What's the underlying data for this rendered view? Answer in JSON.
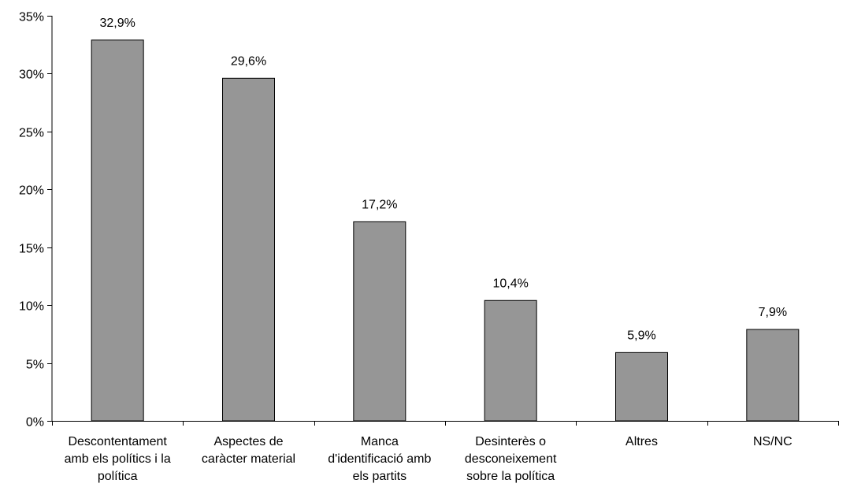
{
  "chart_data": {
    "type": "bar",
    "title": "",
    "xlabel": "",
    "ylabel": "",
    "categories": [
      "Descontentament amb els polítics i la política",
      "Aspectes de caràcter material",
      "Manca d'identificació amb els partits",
      "Desinterès o desconeixement sobre la política",
      "Altres",
      "NS/NC"
    ],
    "category_lines": [
      [
        "Descontentament",
        "amb els polítics i la",
        "política"
      ],
      [
        "Aspectes de",
        "caràcter material"
      ],
      [
        "Manca",
        "d'identificació amb",
        "els partits"
      ],
      [
        "Desinterès o",
        "desconeixement",
        "sobre la política"
      ],
      [
        "Altres"
      ],
      [
        "NS/NC"
      ]
    ],
    "values": [
      32.9,
      29.6,
      17.2,
      10.4,
      5.9,
      7.9
    ],
    "value_labels": [
      "32,9%",
      "29,6%",
      "17,2%",
      "10,4%",
      "5,9%",
      "7,9%"
    ],
    "ylim": [
      0,
      35
    ],
    "yticks": [
      0,
      5,
      10,
      15,
      20,
      25,
      30,
      35
    ],
    "ytick_labels": [
      "0%",
      "5%",
      "10%",
      "15%",
      "20%",
      "25%",
      "30%",
      "35%"
    ],
    "grid": false,
    "legend": "none",
    "colors": {
      "bar_fill": "#969696",
      "bar_stroke": "#000000",
      "axis": "#000000"
    }
  }
}
